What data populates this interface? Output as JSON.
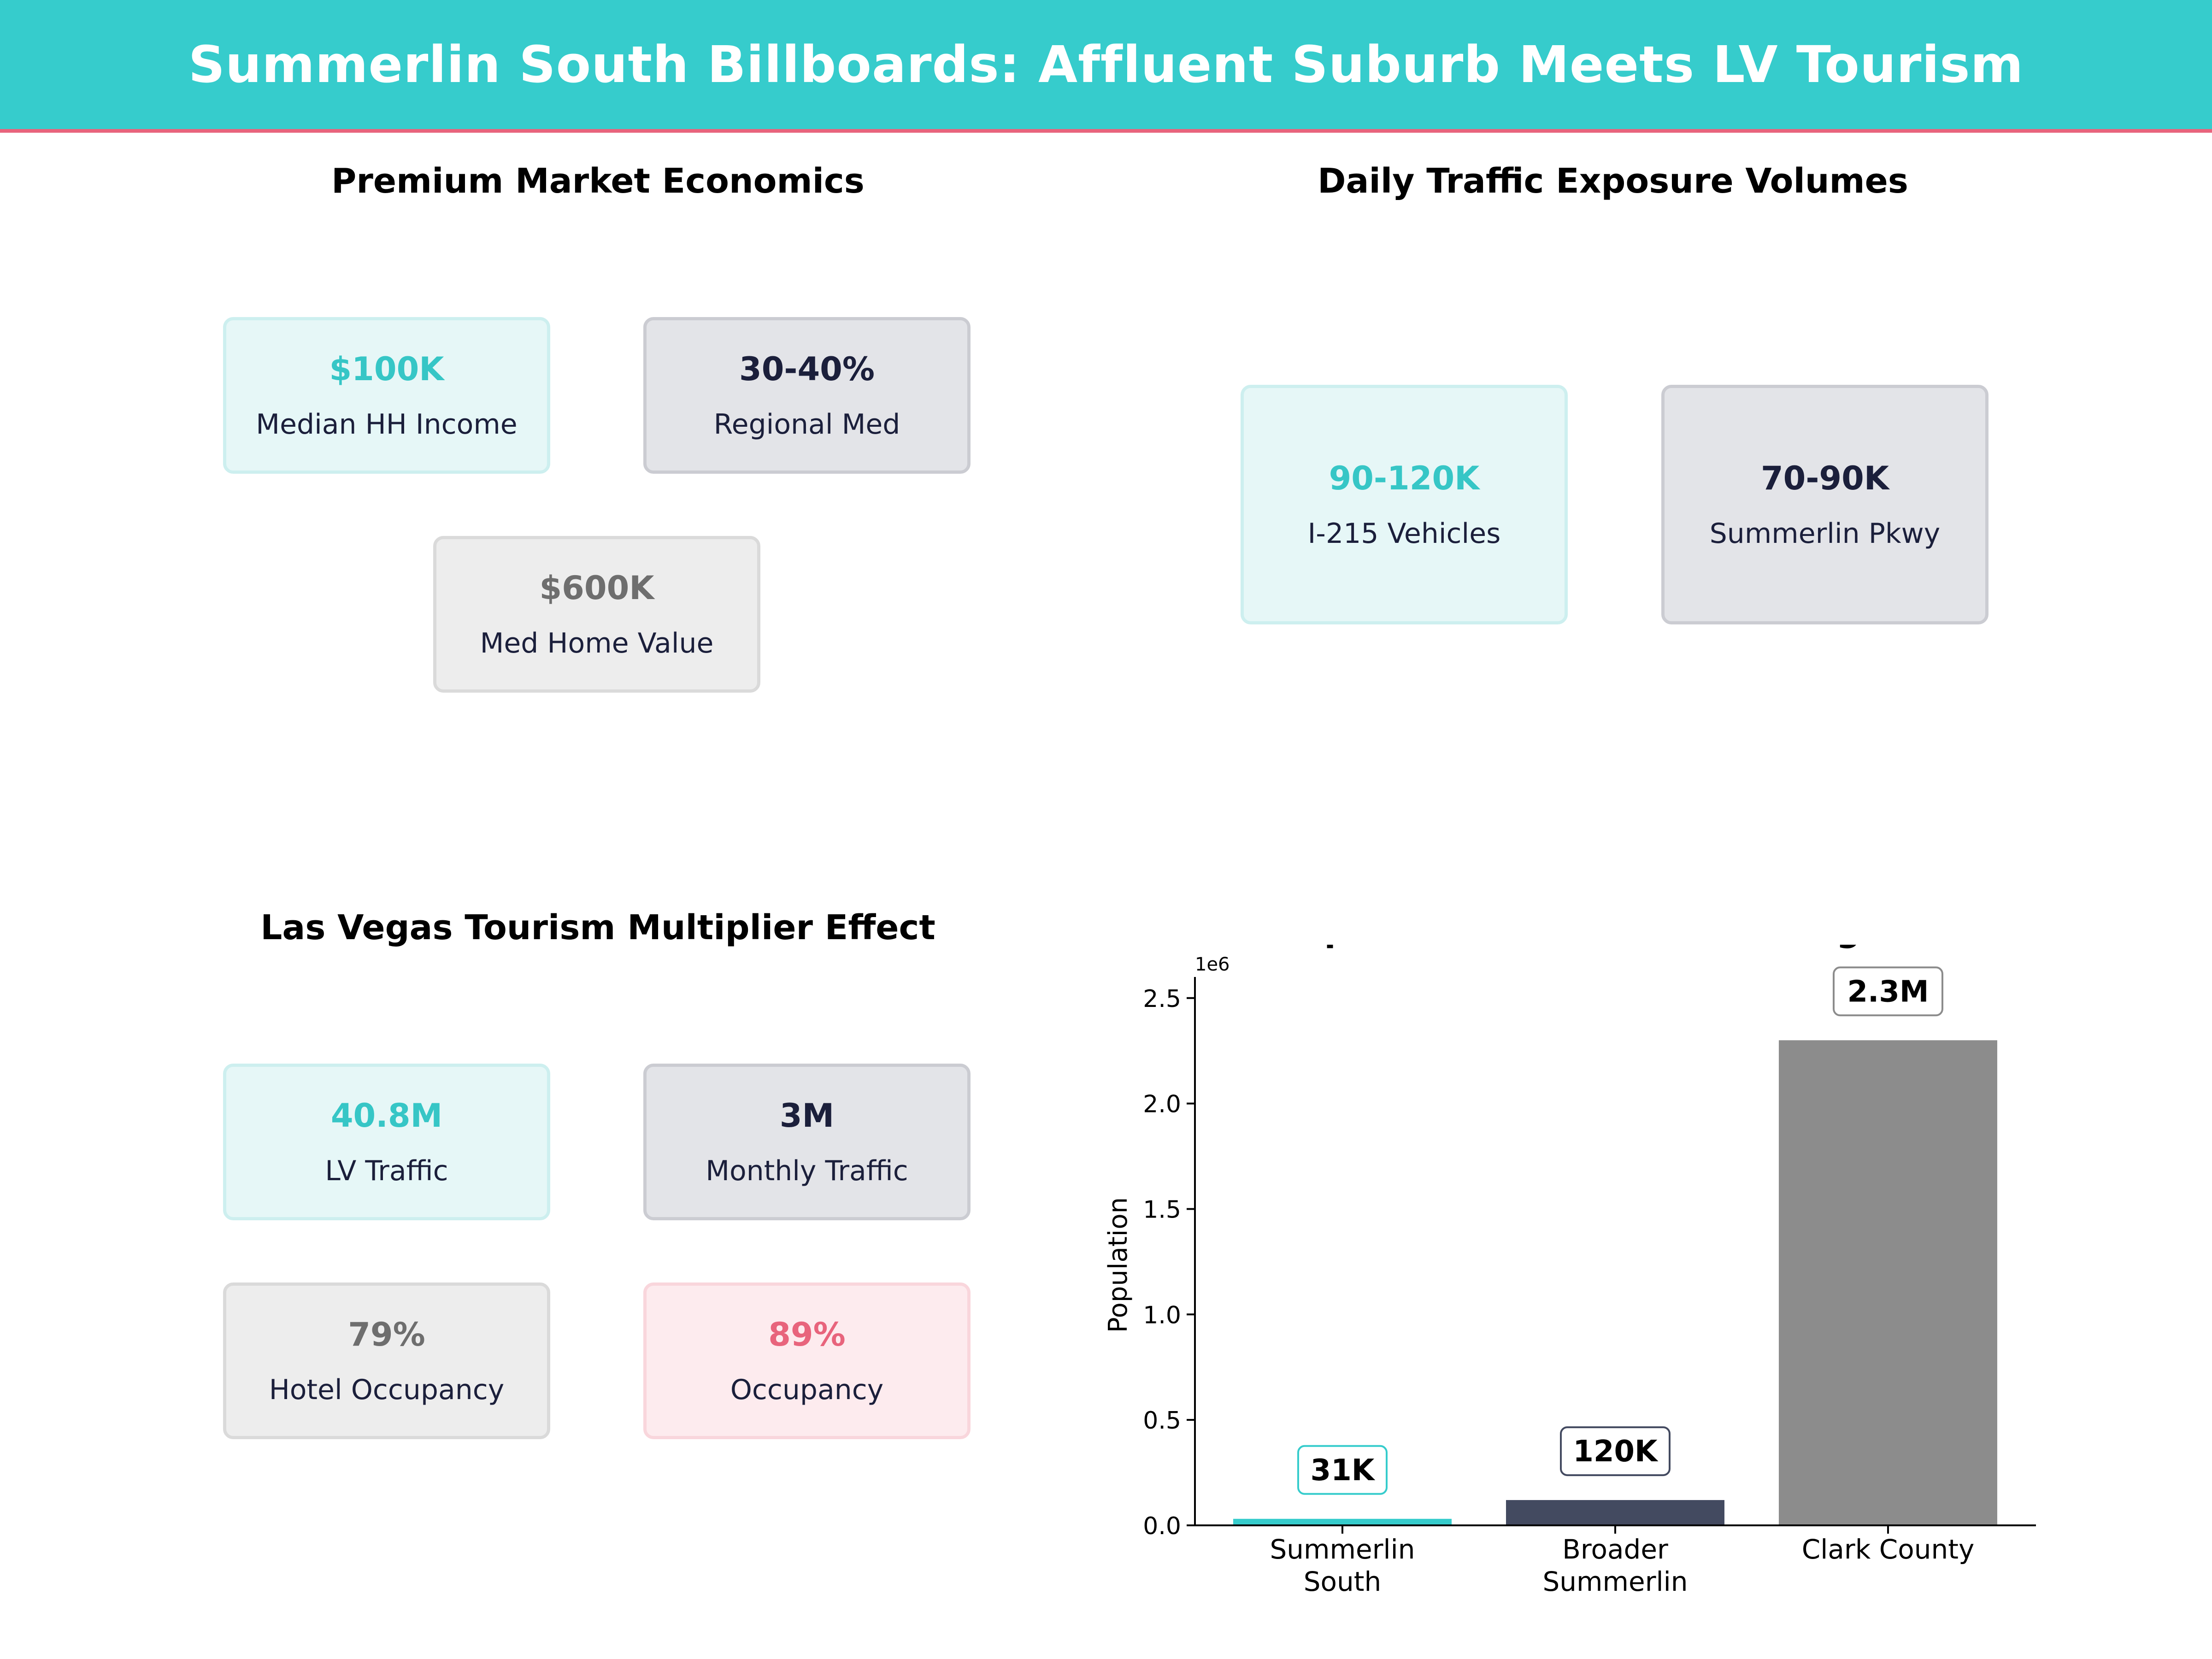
{
  "title": "Summerlin South Billboards: Affluent Suburb Meets LV Tourism",
  "economics": {
    "title": "Premium Market Economics",
    "cards": [
      {
        "value": "$100K",
        "label": "Median HH Income"
      },
      {
        "value": "30-40%",
        "label": "Regional Med"
      },
      {
        "value": "$600K",
        "label": "Med Home Value"
      }
    ]
  },
  "traffic": {
    "title": "Daily Traffic Exposure Volumes",
    "cards": [
      {
        "value": "90-120K",
        "label": "I-215  Vehicles"
      },
      {
        "value": "70-90K",
        "label": "Summerlin Pkwy"
      }
    ]
  },
  "tourism": {
    "title": "Las Vegas Tourism Multiplier Effect",
    "cards": [
      {
        "value": "40.8M",
        "label": "LV Traffic"
      },
      {
        "value": "3M",
        "label": "Monthly Traffic"
      },
      {
        "value": "79%",
        "label": "Hotel Occupancy"
      },
      {
        "value": "89%",
        "label": "Occupancy"
      }
    ]
  },
  "chart_data": {
    "type": "bar",
    "title": "Population Scale: Local to Regional",
    "xlabel": "",
    "ylabel": "Population",
    "offset_label": "1e6",
    "categories": [
      "Summerlin South",
      "Broader Summerlin",
      "Clark County"
    ],
    "category_lines": [
      [
        "Summerlin",
        "South"
      ],
      [
        "Broader",
        "Summerlin"
      ],
      [
        "Clark County"
      ]
    ],
    "values": [
      31000,
      120000,
      2300000
    ],
    "data_labels": [
      "31K",
      "120K",
      "2.3M"
    ],
    "colors": [
      "#36CCCC",
      "#434A60",
      "#8C8C8C"
    ],
    "ylim": [
      0,
      2600000
    ],
    "yticks": [
      0,
      0.5,
      1.0,
      1.5,
      2.0,
      2.5
    ],
    "ytick_labels": [
      "0.0",
      "0.5",
      "1.0",
      "1.5",
      "2.0",
      "2.5"
    ],
    "grid": false
  }
}
